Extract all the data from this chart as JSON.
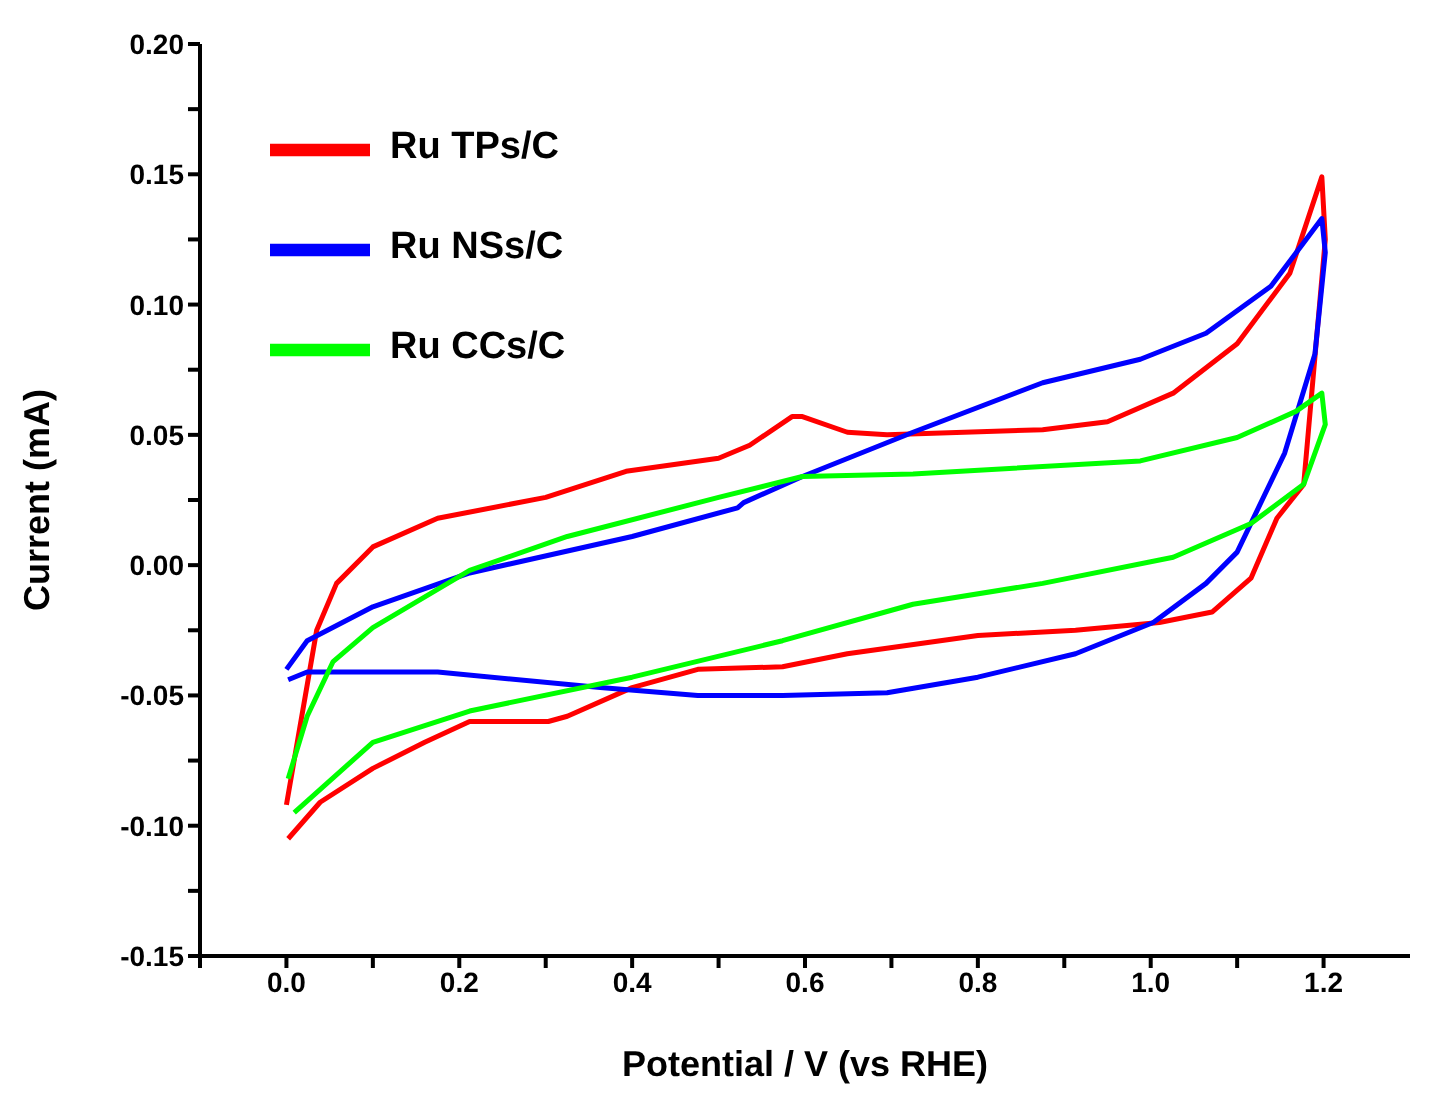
{
  "chart_data": {
    "type": "line",
    "xlabel": "Potential / V (vs RHE)",
    "ylabel": "Current (mA)",
    "xlim": [
      -0.1,
      1.3
    ],
    "ylim": [
      -0.15,
      0.2
    ],
    "xticks": [
      {
        "value": -0.1,
        "label": null
      },
      {
        "value": 0,
        "label": "0.0"
      },
      {
        "value": 0.1,
        "label": null
      },
      {
        "value": 0.2,
        "label": "0.2"
      },
      {
        "value": 0.3,
        "label": null
      },
      {
        "value": 0.4,
        "label": "0.4"
      },
      {
        "value": 0.5,
        "label": null
      },
      {
        "value": 0.6,
        "label": "0.6"
      },
      {
        "value": 0.7,
        "label": null
      },
      {
        "value": 0.8,
        "label": "0.8"
      },
      {
        "value": 0.9,
        "label": null
      },
      {
        "value": 1,
        "label": "1.0"
      },
      {
        "value": 1.1,
        "label": null
      },
      {
        "value": 1.2,
        "label": "1.2"
      }
    ],
    "yticks": [
      {
        "value": -0.15,
        "label": "-0.15"
      },
      {
        "value": -0.125,
        "label": null
      },
      {
        "value": -0.1,
        "label": "-0.10"
      },
      {
        "value": -0.075,
        "label": null
      },
      {
        "value": -0.05,
        "label": "-0.05"
      },
      {
        "value": -0.025,
        "label": null
      },
      {
        "value": 0,
        "label": "0.00"
      },
      {
        "value": 0.025,
        "label": null
      },
      {
        "value": 0.05,
        "label": "0.05"
      },
      {
        "value": 0.075,
        "label": null
      },
      {
        "value": 0.1,
        "label": "0.10"
      },
      {
        "value": 0.125,
        "label": null
      },
      {
        "value": 0.15,
        "label": "0.15"
      },
      {
        "value": 0.175,
        "label": null
      },
      {
        "value": 0.2,
        "label": "0.20"
      }
    ],
    "grid": false,
    "legend": "top left",
    "marker": "none",
    "line_style": "solid",
    "series": [
      {
        "name": "Ru TPs/C",
        "color": "#ff0000",
        "x": [
          0,
          0.035,
          0.058,
          0.1,
          0.175,
          0.3,
          0.393,
          0.5,
          0.536,
          0.585,
          0.597,
          0.649,
          0.695,
          0.875,
          0.95,
          1.026,
          1.1,
          1.161,
          1.198,
          1.202,
          1.177,
          1.146,
          1.116,
          1.071,
          1.01,
          0.913,
          0.8,
          0.649,
          0.574,
          0.476,
          0.4,
          0.325,
          0.303,
          0.212,
          0.16,
          0.1,
          0.039,
          0.002
        ],
        "values": [
          -0.092,
          -0.025,
          -0.007,
          0.007,
          0.018,
          0.026,
          0.036,
          0.041,
          0.046,
          0.057,
          0.057,
          0.051,
          0.05,
          0.052,
          0.055,
          0.066,
          0.085,
          0.112,
          0.149,
          0.125,
          0.031,
          0.018,
          -0.005,
          -0.018,
          -0.022,
          -0.025,
          -0.027,
          -0.034,
          -0.039,
          -0.04,
          -0.047,
          -0.058,
          -0.06,
          -0.06,
          -0.068,
          -0.078,
          -0.091,
          -0.105
        ]
      },
      {
        "name": "Ru NSs/C",
        "color": "#0000ff",
        "x": [
          0,
          0.024,
          0.1,
          0.212,
          0.4,
          0.522,
          0.529,
          0.597,
          0.725,
          0.875,
          0.988,
          1.064,
          1.139,
          1.198,
          1.202,
          1.19,
          1.155,
          1.1,
          1.064,
          1.003,
          0.913,
          0.8,
          0.695,
          0.574,
          0.476,
          0.363,
          0.175,
          0.024,
          0.002
        ],
        "values": [
          -0.04,
          -0.029,
          -0.016,
          -0.003,
          0.011,
          0.022,
          0.024,
          0.034,
          0.051,
          0.07,
          0.079,
          0.089,
          0.107,
          0.133,
          0.12,
          0.081,
          0.043,
          0.005,
          -0.007,
          -0.022,
          -0.034,
          -0.043,
          -0.049,
          -0.05,
          -0.05,
          -0.047,
          -0.041,
          -0.041,
          -0.044
        ]
      },
      {
        "name": "Ru CCs/C",
        "color": "#00ff00",
        "x": [
          0.002,
          0.024,
          0.054,
          0.1,
          0.212,
          0.325,
          0.5,
          0.597,
          0.725,
          0.988,
          1.1,
          1.168,
          1.198,
          1.202,
          1.177,
          1.116,
          1.026,
          0.875,
          0.725,
          0.574,
          0.4,
          0.212,
          0.1,
          0.009
        ],
        "values": [
          -0.082,
          -0.058,
          -0.037,
          -0.024,
          -0.002,
          0.011,
          0.026,
          0.034,
          0.035,
          0.04,
          0.049,
          0.059,
          0.066,
          0.054,
          0.031,
          0.016,
          0.003,
          -0.007,
          -0.015,
          -0.029,
          -0.043,
          -0.056,
          -0.068,
          -0.095
        ]
      }
    ]
  }
}
